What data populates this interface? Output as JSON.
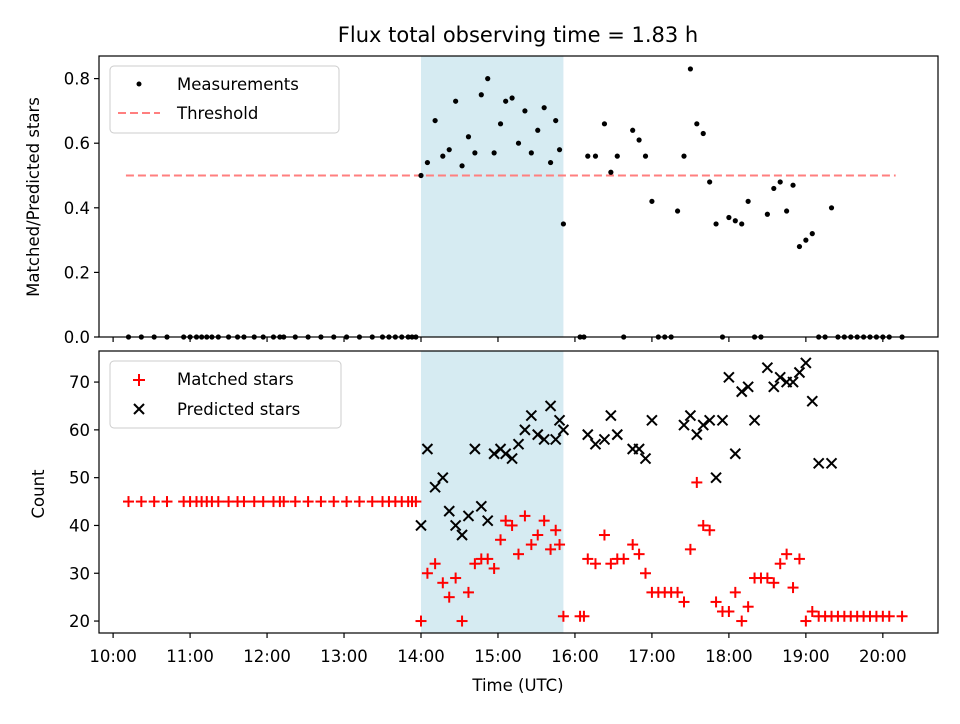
{
  "chart_data": [
    {
      "type": "scatter",
      "title": "Flux total observing time = 1.83 h",
      "xlabel": "",
      "ylabel": "Matched/Predicted stars",
      "xlim": [
        "09:49",
        "20:43"
      ],
      "ylim": [
        0,
        0.87
      ],
      "yticks": [
        "0.0",
        "0.2",
        "0.4",
        "0.6",
        "0.8"
      ],
      "grid": false,
      "legend_position": "top-left",
      "shaded_region": {
        "x0": "14:00",
        "x1": "15:51",
        "color": "#add8e6"
      },
      "threshold": {
        "name": "Threshold",
        "value": 0.5,
        "x0": "10:10",
        "x1": "20:10",
        "color": "#ff7f7f"
      },
      "series": [
        {
          "name": "Measurements",
          "marker": "dot",
          "color": "#000000",
          "x": [
            "10:12",
            "10:22",
            "10:32",
            "10:42",
            "10:55",
            "11:00",
            "11:05",
            "11:09",
            "11:13",
            "11:17",
            "11:22",
            "11:30",
            "11:37",
            "11:42",
            "11:50",
            "11:57",
            "12:05",
            "12:10",
            "12:13",
            "12:22",
            "12:32",
            "12:42",
            "12:52",
            "13:02",
            "13:12",
            "13:22",
            "13:30",
            "13:35",
            "13:40",
            "13:45",
            "13:50",
            "13:53",
            "13:56",
            "14:00",
            "14:05",
            "14:11",
            "14:17",
            "14:22",
            "14:27",
            "14:32",
            "14:37",
            "14:42",
            "14:47",
            "14:52",
            "14:57",
            "15:02",
            "15:06",
            "15:11",
            "15:16",
            "15:21",
            "15:26",
            "15:31",
            "15:36",
            "15:41",
            "15:45",
            "15:48",
            "15:51",
            "16:04",
            "16:07",
            "16:10",
            "16:16",
            "16:23",
            "16:28",
            "16:33",
            "16:38",
            "16:45",
            "16:50",
            "16:55",
            "17:00",
            "17:05",
            "17:10",
            "17:15",
            "17:20",
            "17:25",
            "17:30",
            "17:35",
            "17:40",
            "17:45",
            "17:50",
            "17:55",
            "18:00",
            "18:05",
            "18:10",
            "18:15",
            "18:20",
            "18:25",
            "18:30",
            "18:35",
            "18:40",
            "18:45",
            "18:50",
            "18:55",
            "19:00",
            "19:05",
            "19:10",
            "19:15",
            "19:20",
            "19:25",
            "19:30",
            "19:35",
            "19:40",
            "19:45",
            "19:50",
            "19:55",
            "20:00",
            "20:05",
            "20:15"
          ],
          "y": [
            0,
            0,
            0,
            0,
            0,
            0,
            0,
            0,
            0,
            0,
            0,
            0,
            0,
            0,
            0,
            0,
            0,
            0,
            0,
            0,
            0,
            0,
            0,
            0,
            0,
            0,
            0,
            0,
            0,
            0,
            0,
            0,
            0,
            0.5,
            0.54,
            0.67,
            0.56,
            0.58,
            0.73,
            0.53,
            0.62,
            0.57,
            0.75,
            0.8,
            0.57,
            0.66,
            0.73,
            0.74,
            0.6,
            0.7,
            0.57,
            0.64,
            0.71,
            0.54,
            0.67,
            0.58,
            0.35,
            0,
            0,
            0.56,
            0.56,
            0.66,
            0.51,
            0.56,
            0,
            0.64,
            0.61,
            0.56,
            0.42,
            0,
            0,
            0,
            0.39,
            0.56,
            0.83,
            0.66,
            0.63,
            0.48,
            0.35,
            0,
            0.37,
            0.36,
            0.35,
            0.42,
            0,
            0,
            0.38,
            0.46,
            0.48,
            0.39,
            0.47,
            0.28,
            0.3,
            0.32,
            0,
            0,
            0.4,
            0,
            0,
            0,
            0,
            0,
            0,
            0,
            0,
            0,
            0
          ]
        }
      ]
    },
    {
      "type": "scatter",
      "title": "",
      "xlabel": "Time (UTC)",
      "ylabel": "Count",
      "xlim": [
        "09:49",
        "20:43"
      ],
      "ylim": [
        17.5,
        76.5
      ],
      "xticks": [
        "10:00",
        "11:00",
        "12:00",
        "13:00",
        "14:00",
        "15:00",
        "16:00",
        "17:00",
        "18:00",
        "19:00",
        "20:00"
      ],
      "yticks": [
        "20",
        "30",
        "40",
        "50",
        "60",
        "70"
      ],
      "grid": false,
      "legend_position": "top-left",
      "shaded_region": {
        "x0": "14:00",
        "x1": "15:51",
        "color": "#add8e6"
      },
      "series": [
        {
          "name": "Matched stars",
          "marker": "plus",
          "color": "#ff0000",
          "x": [
            "10:12",
            "10:22",
            "10:32",
            "10:42",
            "10:55",
            "11:00",
            "11:05",
            "11:09",
            "11:13",
            "11:17",
            "11:22",
            "11:30",
            "11:37",
            "11:42",
            "11:50",
            "11:57",
            "12:05",
            "12:10",
            "12:13",
            "12:22",
            "12:32",
            "12:42",
            "12:52",
            "13:02",
            "13:12",
            "13:22",
            "13:30",
            "13:35",
            "13:40",
            "13:45",
            "13:50",
            "13:53",
            "13:56",
            "14:00",
            "14:05",
            "14:11",
            "14:17",
            "14:22",
            "14:27",
            "14:32",
            "14:37",
            "14:42",
            "14:47",
            "14:52",
            "14:57",
            "15:02",
            "15:06",
            "15:11",
            "15:16",
            "15:21",
            "15:26",
            "15:31",
            "15:36",
            "15:41",
            "15:45",
            "15:48",
            "15:51",
            "16:04",
            "16:07",
            "16:10",
            "16:16",
            "16:23",
            "16:28",
            "16:33",
            "16:38",
            "16:45",
            "16:50",
            "16:55",
            "17:00",
            "17:05",
            "17:10",
            "17:15",
            "17:20",
            "17:25",
            "17:30",
            "17:35",
            "17:40",
            "17:45",
            "17:50",
            "17:55",
            "18:00",
            "18:05",
            "18:10",
            "18:15",
            "18:20",
            "18:25",
            "18:30",
            "18:35",
            "18:40",
            "18:45",
            "18:50",
            "18:55",
            "19:00",
            "19:05",
            "19:10",
            "19:15",
            "19:20",
            "19:25",
            "19:30",
            "19:35",
            "19:40",
            "19:45",
            "19:50",
            "19:55",
            "20:00",
            "20:05",
            "20:15"
          ],
          "y": [
            45,
            45,
            45,
            45,
            45,
            45,
            45,
            45,
            45,
            45,
            45,
            45,
            45,
            45,
            45,
            45,
            45,
            45,
            45,
            45,
            45,
            45,
            45,
            45,
            45,
            45,
            45,
            45,
            45,
            45,
            45,
            45,
            45,
            20,
            30,
            32,
            28,
            25,
            29,
            20,
            26,
            32,
            33,
            33,
            31,
            37,
            41,
            40,
            34,
            42,
            36,
            38,
            41,
            35,
            39,
            36,
            21,
            21,
            21,
            33,
            32,
            38,
            32,
            33,
            33,
            36,
            34,
            30,
            26,
            26,
            26,
            26,
            26,
            24,
            35,
            49,
            40,
            39,
            24,
            22,
            22,
            26,
            20,
            23,
            29,
            29,
            29,
            28,
            32,
            34,
            27,
            33,
            20,
            22,
            21,
            21,
            21,
            21,
            21,
            21,
            21,
            21,
            21,
            21,
            21,
            21,
            21
          ]
        },
        {
          "name": "Predicted stars",
          "marker": "x",
          "color": "#000000",
          "x": [
            "14:00",
            "14:05",
            "14:11",
            "14:17",
            "14:22",
            "14:27",
            "14:32",
            "14:37",
            "14:42",
            "14:47",
            "14:52",
            "14:57",
            "15:02",
            "15:06",
            "15:11",
            "15:16",
            "15:21",
            "15:26",
            "15:31",
            "15:36",
            "15:41",
            "15:45",
            "15:48",
            "15:51",
            "16:10",
            "16:16",
            "16:23",
            "16:28",
            "16:33",
            "16:45",
            "16:50",
            "16:55",
            "17:00",
            "17:25",
            "17:30",
            "17:35",
            "17:40",
            "17:45",
            "17:50",
            "17:55",
            "18:00",
            "18:05",
            "18:10",
            "18:15",
            "18:20",
            "18:30",
            "18:35",
            "18:40",
            "18:45",
            "18:50",
            "18:55",
            "19:00",
            "19:05",
            "19:10",
            "19:20"
          ],
          "y": [
            40,
            56,
            48,
            50,
            43,
            40,
            38,
            42,
            56,
            44,
            41,
            55,
            56,
            55,
            54,
            57,
            60,
            63,
            59,
            58,
            65,
            58,
            62,
            60,
            59,
            57,
            58,
            63,
            59,
            56,
            56,
            54,
            62,
            61,
            63,
            59,
            61,
            62,
            50,
            62,
            71,
            55,
            68,
            69,
            62,
            73,
            69,
            71,
            70,
            70,
            72,
            74,
            66,
            53,
            53
          ]
        }
      ]
    }
  ]
}
